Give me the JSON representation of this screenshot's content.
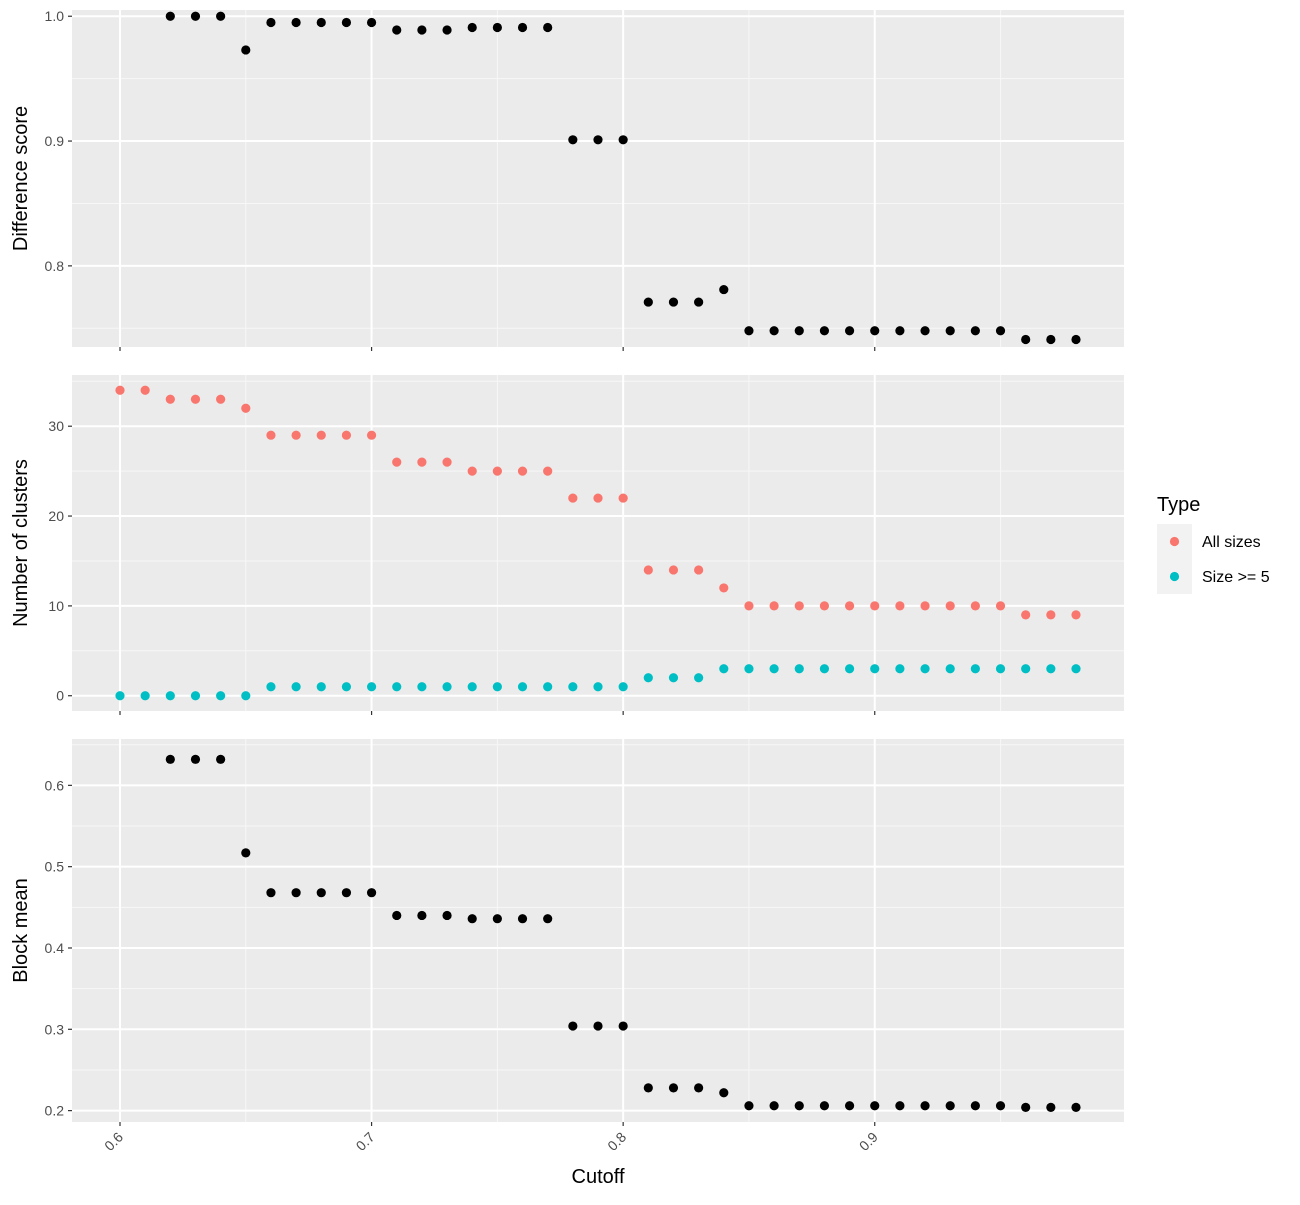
{
  "chart_data": {
    "type": "scatter",
    "xlabel": "Cutoff",
    "xlim": [
      0.6,
      0.98
    ],
    "x_ticks": [
      "0.6",
      "0.7",
      "0.8",
      "0.9"
    ],
    "panels": [
      {
        "ylabel": "Difference score",
        "ylim": [
          0.735,
          1.005
        ],
        "y_ticks": [
          "0.8",
          "0.9",
          "1.0"
        ],
        "series": [
          {
            "color": "#000000",
            "x": [
              0.62,
              0.63,
              0.64,
              0.65,
              0.66,
              0.67,
              0.68,
              0.69,
              0.7,
              0.71,
              0.72,
              0.73,
              0.74,
              0.75,
              0.76,
              0.77,
              0.78,
              0.79,
              0.8,
              0.81,
              0.82,
              0.83,
              0.84,
              0.85,
              0.86,
              0.87,
              0.88,
              0.89,
              0.9,
              0.91,
              0.92,
              0.93,
              0.94,
              0.95,
              0.96,
              0.97,
              0.98
            ],
            "y": [
              1.0,
              1.0,
              1.0,
              0.973,
              0.995,
              0.995,
              0.995,
              0.995,
              0.995,
              0.989,
              0.989,
              0.989,
              0.991,
              0.991,
              0.991,
              0.991,
              0.901,
              0.901,
              0.901,
              0.771,
              0.771,
              0.771,
              0.781,
              0.748,
              0.748,
              0.748,
              0.748,
              0.748,
              0.748,
              0.748,
              0.748,
              0.748,
              0.748,
              0.748,
              0.741,
              0.741,
              0.741
            ]
          }
        ]
      },
      {
        "ylabel": "Number of clusters",
        "ylim": [
          -1.7,
          35.7
        ],
        "y_ticks": [
          "0",
          "10",
          "20",
          "30"
        ],
        "legend": {
          "title": "Type",
          "position": "right",
          "entries": [
            "All sizes",
            "Size >= 5"
          ]
        },
        "series": [
          {
            "name": "All sizes",
            "color": "#F8766D",
            "x": [
              0.6,
              0.61,
              0.62,
              0.63,
              0.64,
              0.65,
              0.66,
              0.67,
              0.68,
              0.69,
              0.7,
              0.71,
              0.72,
              0.73,
              0.74,
              0.75,
              0.76,
              0.77,
              0.78,
              0.79,
              0.8,
              0.81,
              0.82,
              0.83,
              0.84,
              0.85,
              0.86,
              0.87,
              0.88,
              0.89,
              0.9,
              0.91,
              0.92,
              0.93,
              0.94,
              0.95,
              0.96,
              0.97,
              0.98
            ],
            "y": [
              34,
              34,
              33,
              33,
              33,
              32,
              29,
              29,
              29,
              29,
              29,
              26,
              26,
              26,
              25,
              25,
              25,
              25,
              22,
              22,
              22,
              14,
              14,
              14,
              12,
              10,
              10,
              10,
              10,
              10,
              10,
              10,
              10,
              10,
              10,
              10,
              9,
              9,
              9
            ]
          },
          {
            "name": "Size >= 5",
            "color": "#00BFC4",
            "x": [
              0.6,
              0.61,
              0.62,
              0.63,
              0.64,
              0.65,
              0.66,
              0.67,
              0.68,
              0.69,
              0.7,
              0.71,
              0.72,
              0.73,
              0.74,
              0.75,
              0.76,
              0.77,
              0.78,
              0.79,
              0.8,
              0.81,
              0.82,
              0.83,
              0.84,
              0.85,
              0.86,
              0.87,
              0.88,
              0.89,
              0.9,
              0.91,
              0.92,
              0.93,
              0.94,
              0.95,
              0.96,
              0.97,
              0.98
            ],
            "y": [
              0,
              0,
              0,
              0,
              0,
              0,
              1,
              1,
              1,
              1,
              1,
              1,
              1,
              1,
              1,
              1,
              1,
              1,
              1,
              1,
              1,
              2,
              2,
              2,
              3,
              3,
              3,
              3,
              3,
              3,
              3,
              3,
              3,
              3,
              3,
              3,
              3,
              3,
              3
            ]
          }
        ]
      },
      {
        "ylabel": "Block mean",
        "ylim": [
          0.186,
          0.657
        ],
        "y_ticks": [
          "0.2",
          "0.3",
          "0.4",
          "0.5",
          "0.6"
        ],
        "series": [
          {
            "color": "#000000",
            "x": [
              0.62,
              0.63,
              0.64,
              0.65,
              0.66,
              0.67,
              0.68,
              0.69,
              0.7,
              0.71,
              0.72,
              0.73,
              0.74,
              0.75,
              0.76,
              0.77,
              0.78,
              0.79,
              0.8,
              0.81,
              0.82,
              0.83,
              0.84,
              0.85,
              0.86,
              0.87,
              0.88,
              0.89,
              0.9,
              0.91,
              0.92,
              0.93,
              0.94,
              0.95,
              0.96,
              0.97,
              0.98
            ],
            "y": [
              0.632,
              0.632,
              0.632,
              0.517,
              0.468,
              0.468,
              0.468,
              0.468,
              0.468,
              0.44,
              0.44,
              0.44,
              0.436,
              0.436,
              0.436,
              0.436,
              0.304,
              0.304,
              0.304,
              0.228,
              0.228,
              0.228,
              0.222,
              0.206,
              0.206,
              0.206,
              0.206,
              0.206,
              0.206,
              0.206,
              0.206,
              0.206,
              0.206,
              0.206,
              0.204,
              0.204,
              0.204
            ]
          }
        ]
      }
    ]
  }
}
